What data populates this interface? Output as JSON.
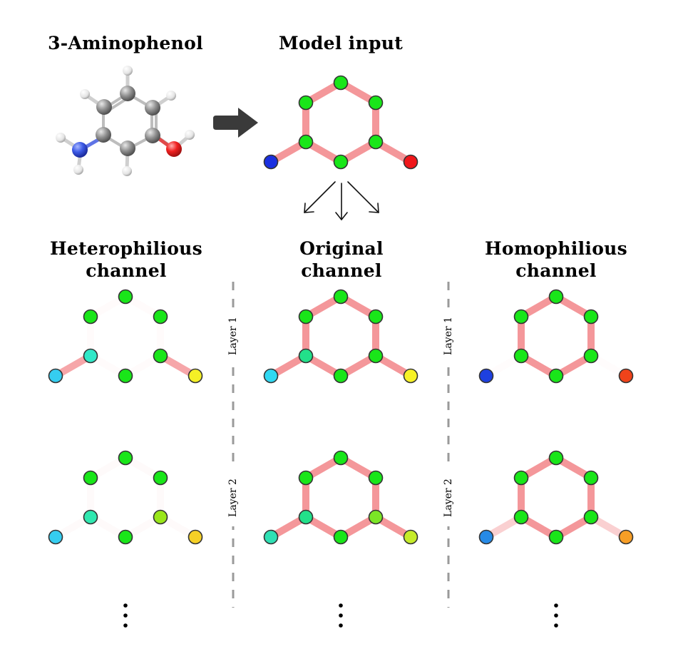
{
  "titles": {
    "molecule": "3-Aminophenol",
    "model_input": "Model input",
    "heterophilious": [
      "Heterophilious",
      "channel"
    ],
    "original": [
      "Original",
      "channel"
    ],
    "homophilious": [
      "Homophilious",
      "channel"
    ]
  },
  "layers": [
    "Layer 1",
    "Layer 2"
  ],
  "continuation": "⋮",
  "colors": {
    "edge": "#f4979a",
    "node_stroke": "#333333",
    "carbon_green": "#19e619",
    "nitrogen_blue": "#1a2fe0",
    "oxygen_red": "#f0161a",
    "separator": "#9a9a9a",
    "arrow": "#3a3a3a"
  },
  "graphs": [
    {
      "panel": "model-input",
      "edge_opacity": [
        1,
        1,
        1,
        1,
        1,
        1,
        1,
        1
      ],
      "node_colors": [
        "#19e619",
        "#19e619",
        "#19e619",
        "#19e619",
        "#19e619",
        "#19e619",
        "#1a2fe0",
        "#f0161a"
      ]
    },
    {
      "panel": "heterophilious-layer-1",
      "edge_opacity": [
        0.04,
        0.04,
        0.04,
        0.04,
        0.04,
        0.04,
        0.85,
        0.85
      ],
      "node_colors": [
        "#19e619",
        "#19e619",
        "#19e619",
        "#19e619",
        "#19e619",
        "#30e8c8",
        "#35cdf0",
        "#f5f026"
      ]
    },
    {
      "panel": "original-layer-1",
      "edge_opacity": [
        1,
        1,
        1,
        1,
        1,
        1,
        1,
        1
      ],
      "node_colors": [
        "#19e619",
        "#19e619",
        "#19e619",
        "#19e619",
        "#19e619",
        "#22e08a",
        "#2fd8f2",
        "#f7f226"
      ]
    },
    {
      "panel": "homophilious-layer-1",
      "edge_opacity": [
        1,
        1,
        1,
        1,
        1,
        1,
        0.03,
        0.03
      ],
      "node_colors": [
        "#19e619",
        "#19e619",
        "#19e619",
        "#19e619",
        "#19e619",
        "#19e619",
        "#1e40e0",
        "#f0431a"
      ]
    },
    {
      "panel": "heterophilious-layer-2",
      "edge_opacity": [
        0.05,
        0.05,
        0.05,
        0.05,
        0.05,
        0.05,
        0.05,
        0.05
      ],
      "node_colors": [
        "#19e619",
        "#19e619",
        "#19e619",
        "#99e619",
        "#19e619",
        "#30e8b0",
        "#35cdf0",
        "#f5d026"
      ]
    },
    {
      "panel": "original-layer-2",
      "edge_opacity": [
        1,
        1,
        1,
        1,
        1,
        1,
        1,
        1
      ],
      "node_colors": [
        "#19e619",
        "#19e619",
        "#19e619",
        "#7be626",
        "#19e619",
        "#22e08a",
        "#2fe0b4",
        "#c6ec2a"
      ]
    },
    {
      "panel": "homophilious-layer-2",
      "edge_opacity": [
        1,
        1,
        1,
        1,
        1,
        1,
        0.45,
        0.45
      ],
      "node_colors": [
        "#19e619",
        "#19e619",
        "#19e619",
        "#19e619",
        "#19e619",
        "#19e619",
        "#268ae6",
        "#f79e26"
      ]
    }
  ]
}
